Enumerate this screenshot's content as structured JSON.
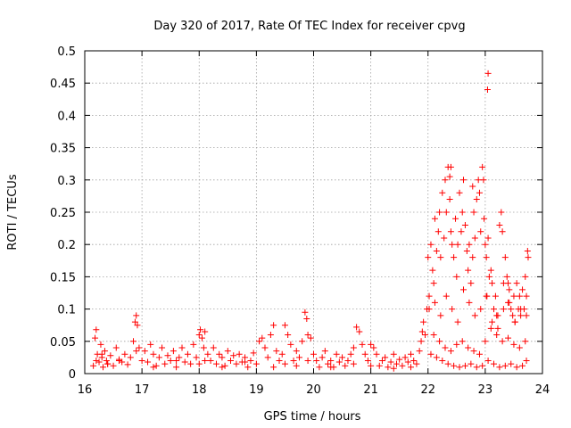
{
  "chart_data": {
    "type": "scatter",
    "title": "Day 320 of 2017, Rate Of TEC Index for receiver cpvg",
    "xlabel": "GPS time / hours",
    "ylabel": "ROTI / TECUs",
    "xlim": [
      16,
      24
    ],
    "ylim": [
      0,
      0.5
    ],
    "xticks": [
      16,
      17,
      18,
      19,
      20,
      21,
      22,
      23,
      24
    ],
    "xtick_labels": [
      "16",
      "17",
      "18",
      "19",
      "20",
      "21",
      "22",
      "23",
      "24"
    ],
    "yticks": [
      0,
      0.05,
      0.1,
      0.15,
      0.2,
      0.25,
      0.3,
      0.35,
      0.4,
      0.45,
      0.5
    ],
    "ytick_labels": [
      "0",
      "0.05",
      "0.1",
      "0.15",
      "0.2",
      "0.25",
      "0.3",
      "0.35",
      "0.4",
      "0.45",
      "0.5"
    ],
    "grid": true,
    "marker": "+",
    "series": [
      {
        "name": "ROTI",
        "color": "#ff0000",
        "x": [
          16.15,
          16.18,
          16.2,
          16.22,
          16.25,
          16.28,
          16.3,
          16.32,
          16.35,
          16.38,
          16.4,
          16.45,
          16.5,
          16.55,
          16.6,
          16.65,
          16.7,
          16.75,
          16.8,
          16.85,
          16.88,
          16.9,
          16.92,
          16.95,
          17.0,
          17.05,
          17.1,
          17.15,
          17.2,
          17.25,
          17.3,
          17.35,
          17.4,
          17.45,
          17.5,
          17.55,
          17.6,
          17.65,
          17.7,
          17.75,
          17.8,
          17.85,
          17.9,
          17.95,
          18.0,
          18.02,
          18.05,
          18.08,
          18.1,
          18.15,
          18.2,
          18.25,
          18.3,
          18.35,
          18.4,
          18.45,
          18.5,
          18.55,
          18.6,
          18.65,
          18.7,
          18.75,
          18.8,
          18.85,
          18.9,
          18.95,
          19.0,
          19.05,
          19.1,
          19.15,
          19.2,
          19.25,
          19.3,
          19.35,
          19.4,
          19.45,
          19.5,
          19.55,
          19.6,
          19.65,
          19.7,
          19.75,
          19.8,
          19.85,
          19.88,
          19.9,
          19.95,
          20.0,
          20.05,
          20.1,
          20.15,
          20.2,
          20.25,
          20.3,
          20.35,
          20.4,
          20.45,
          20.5,
          20.55,
          20.6,
          20.65,
          20.7,
          20.75,
          20.8,
          20.85,
          20.9,
          20.95,
          21.0,
          21.05,
          21.1,
          21.15,
          21.2,
          21.25,
          21.3,
          21.35,
          21.4,
          21.45,
          21.5,
          21.55,
          21.6,
          21.65,
          21.7,
          21.75,
          21.8,
          21.85,
          21.88,
          21.9,
          21.92,
          21.95,
          21.98,
          22.0,
          22.02,
          22.05,
          22.08,
          22.1,
          22.12,
          22.15,
          22.18,
          22.2,
          22.22,
          22.25,
          22.28,
          22.3,
          22.32,
          22.35,
          22.38,
          22.4,
          22.42,
          22.45,
          22.48,
          22.5,
          22.52,
          22.55,
          22.58,
          22.6,
          22.62,
          22.65,
          22.68,
          22.7,
          22.72,
          22.75,
          22.78,
          22.8,
          22.82,
          22.85,
          22.88,
          22.9,
          22.92,
          22.95,
          22.98,
          23.0,
          23.02,
          23.03,
          23.05,
          23.07,
          23.1,
          23.12,
          23.15,
          23.18,
          23.2,
          23.22,
          23.25,
          23.28,
          23.3,
          23.32,
          23.35,
          23.38,
          23.4,
          23.42,
          23.45,
          23.48,
          23.5,
          23.52,
          23.55,
          23.58,
          23.6,
          23.62,
          23.65,
          23.68,
          23.7,
          23.72,
          23.75,
          16.2,
          16.3,
          16.4,
          16.6,
          16.9,
          17.2,
          17.6,
          18.0,
          18.1,
          18.4,
          18.8,
          19.3,
          19.5,
          19.7,
          19.9,
          20.3,
          20.7,
          21.0,
          21.4,
          21.7,
          22.05,
          22.15,
          22.25,
          22.35,
          22.45,
          22.55,
          22.65,
          22.75,
          22.85,
          22.95,
          23.05,
          23.15,
          23.25,
          23.35,
          23.45,
          23.55,
          23.65,
          23.72,
          22.1,
          22.2,
          22.3,
          22.4,
          22.5,
          22.6,
          22.7,
          22.8,
          22.9,
          23.0,
          23.1,
          23.2,
          23.3,
          23.4,
          23.5,
          23.6,
          23.7,
          22.02,
          22.12,
          22.22,
          22.32,
          22.42,
          22.52,
          22.62,
          22.72,
          22.82,
          22.92,
          23.02,
          23.12,
          23.22,
          23.32,
          23.42,
          23.52,
          23.62,
          23.72,
          22.38,
          22.4,
          22.78,
          22.97,
          23.04,
          23.05,
          23.4,
          23.74
        ],
        "y": [
          0.012,
          0.055,
          0.068,
          0.03,
          0.018,
          0.045,
          0.025,
          0.01,
          0.035,
          0.02,
          0.015,
          0.028,
          0.012,
          0.04,
          0.022,
          0.018,
          0.03,
          0.014,
          0.025,
          0.05,
          0.08,
          0.09,
          0.075,
          0.04,
          0.02,
          0.035,
          0.018,
          0.045,
          0.03,
          0.012,
          0.025,
          0.04,
          0.015,
          0.028,
          0.02,
          0.035,
          0.01,
          0.025,
          0.04,
          0.018,
          0.03,
          0.015,
          0.045,
          0.025,
          0.06,
          0.068,
          0.055,
          0.04,
          0.065,
          0.03,
          0.02,
          0.04,
          0.015,
          0.03,
          0.025,
          0.012,
          0.035,
          0.02,
          0.028,
          0.015,
          0.03,
          0.018,
          0.025,
          0.01,
          0.02,
          0.032,
          0.015,
          0.05,
          0.055,
          0.04,
          0.025,
          0.06,
          0.075,
          0.035,
          0.02,
          0.03,
          0.075,
          0.06,
          0.045,
          0.02,
          0.035,
          0.025,
          0.05,
          0.095,
          0.085,
          0.06,
          0.055,
          0.03,
          0.02,
          0.01,
          0.025,
          0.035,
          0.015,
          0.02,
          0.01,
          0.03,
          0.018,
          0.025,
          0.012,
          0.02,
          0.03,
          0.04,
          0.072,
          0.065,
          0.045,
          0.03,
          0.02,
          0.045,
          0.04,
          0.03,
          0.012,
          0.02,
          0.025,
          0.01,
          0.018,
          0.03,
          0.015,
          0.022,
          0.012,
          0.025,
          0.018,
          0.03,
          0.02,
          0.015,
          0.035,
          0.05,
          0.065,
          0.08,
          0.06,
          0.1,
          0.18,
          0.12,
          0.2,
          0.16,
          0.14,
          0.24,
          0.19,
          0.22,
          0.25,
          0.18,
          0.28,
          0.21,
          0.3,
          0.25,
          0.32,
          0.27,
          0.22,
          0.2,
          0.18,
          0.24,
          0.15,
          0.2,
          0.28,
          0.22,
          0.25,
          0.3,
          0.23,
          0.19,
          0.16,
          0.2,
          0.14,
          0.18,
          0.25,
          0.21,
          0.27,
          0.3,
          0.28,
          0.22,
          0.32,
          0.24,
          0.2,
          0.18,
          0.12,
          0.21,
          0.15,
          0.16,
          0.14,
          0.1,
          0.12,
          0.09,
          0.07,
          0.23,
          0.25,
          0.22,
          0.14,
          0.18,
          0.15,
          0.11,
          0.13,
          0.1,
          0.09,
          0.12,
          0.08,
          0.14,
          0.1,
          0.12,
          0.09,
          0.13,
          0.1,
          0.15,
          0.12,
          0.18,
          0.02,
          0.03,
          0.015,
          0.02,
          0.035,
          0.01,
          0.02,
          0.015,
          0.02,
          0.01,
          0.018,
          0.01,
          0.015,
          0.012,
          0.02,
          0.01,
          0.015,
          0.012,
          0.008,
          0.01,
          0.03,
          0.025,
          0.02,
          0.015,
          0.012,
          0.01,
          0.012,
          0.015,
          0.01,
          0.012,
          0.02,
          0.015,
          0.01,
          0.012,
          0.015,
          0.01,
          0.012,
          0.02,
          0.06,
          0.05,
          0.04,
          0.035,
          0.045,
          0.05,
          0.04,
          0.035,
          0.03,
          0.05,
          0.07,
          0.06,
          0.05,
          0.055,
          0.045,
          0.04,
          0.05,
          0.1,
          0.11,
          0.09,
          0.12,
          0.1,
          0.08,
          0.13,
          0.11,
          0.09,
          0.1,
          0.12,
          0.08,
          0.09,
          0.1,
          0.11,
          0.08,
          0.1,
          0.09,
          0.305,
          0.32,
          0.29,
          0.3,
          0.44,
          0.465,
          0.14,
          0.19
        ]
      }
    ]
  }
}
